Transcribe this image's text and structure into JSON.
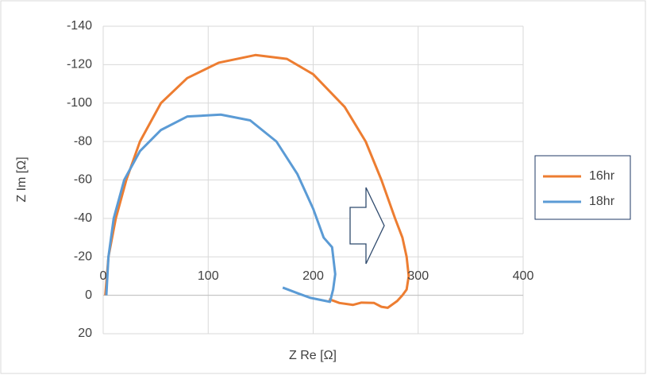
{
  "chart_data": {
    "type": "line",
    "x_label": "Z Re [Ω]",
    "y_label": "Z Im [Ω]",
    "xlim": [
      0,
      400
    ],
    "xticks": [
      0,
      100,
      200,
      300,
      400
    ],
    "ylim": [
      20,
      -140
    ],
    "yticks": [
      -140,
      -120,
      -100,
      -80,
      -60,
      -40,
      -20,
      0,
      20
    ],
    "grid": true,
    "legend": "right",
    "series": [
      {
        "name": "16hr",
        "color": "#ed7d31",
        "x": [
          2,
          5,
          12,
          22,
          35,
          55,
          80,
          110,
          145,
          175,
          200,
          230,
          250,
          265,
          278,
          285,
          289,
          291,
          289,
          285,
          280,
          271,
          265,
          258,
          246,
          238,
          225,
          215
        ],
        "values": [
          0,
          -20,
          -40,
          -60,
          -80,
          -100,
          -113,
          -121,
          -125,
          -123,
          -115,
          -98,
          -80,
          -60,
          -40,
          -30,
          -20,
          -10,
          -3,
          0,
          3,
          6.5,
          6,
          4,
          3.8,
          5,
          4,
          2
        ]
      },
      {
        "name": "18hr",
        "color": "#5b9bd5",
        "x": [
          3,
          5,
          10,
          20,
          35,
          55,
          80,
          112,
          140,
          165,
          185,
          200,
          210,
          218,
          221,
          219,
          216,
          197,
          187,
          171
        ],
        "values": [
          0,
          -20,
          -40,
          -60,
          -75,
          -86,
          -93,
          -94,
          -91,
          -80,
          -63,
          -45,
          -30,
          -25,
          -11,
          -3,
          3.4,
          1.3,
          -0.7,
          -4
        ]
      }
    ]
  }
}
